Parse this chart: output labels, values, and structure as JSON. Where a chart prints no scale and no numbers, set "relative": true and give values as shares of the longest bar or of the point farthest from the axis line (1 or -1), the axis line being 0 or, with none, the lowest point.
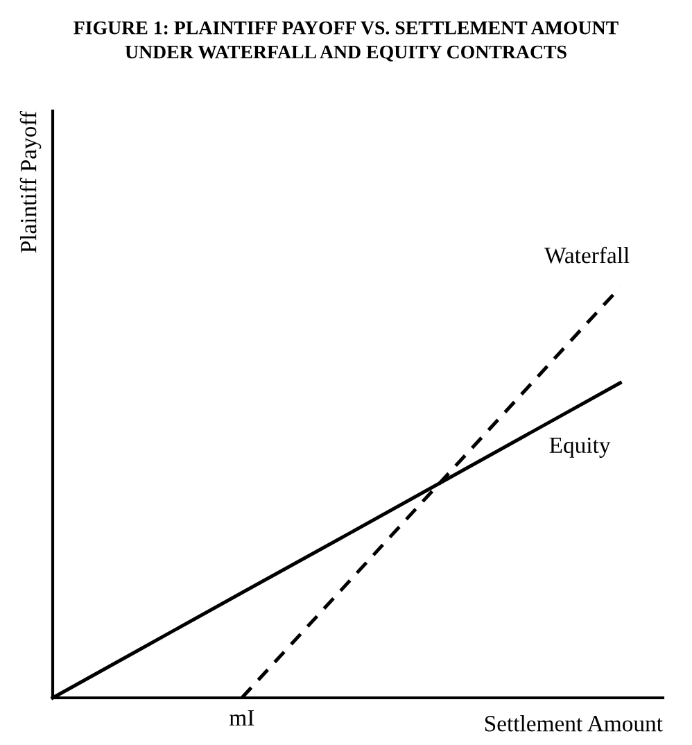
{
  "chart_data": {
    "type": "line",
    "title": "FIGURE 1: PLAINTIFF PAYOFF VS. SETTLEMENT AMOUNT\nUNDER WATERFALL AND EQUITY CONTRACTS",
    "xlabel": "Settlement Amount",
    "ylabel": "Plaintiff Payoff",
    "relative": true,
    "categories": [
      null,
      null,
      null,
      null,
      null,
      null,
      null
    ],
    "annotations": [
      "mI"
    ],
    "series": [
      {
        "name": "Waterfall",
        "color": "#000000",
        "line_style": "dashed",
        "values": [
          null,
          null,
          0,
          0.25,
          0.5,
          0.75,
          1
        ]
      },
      {
        "name": "Equity",
        "color": "#000000",
        "line_style": "solid",
        "values": [
          0,
          0.128,
          0.256,
          0.383,
          0.511,
          0.639,
          0.767
        ]
      }
    ],
    "legend": false,
    "marker": "none"
  }
}
